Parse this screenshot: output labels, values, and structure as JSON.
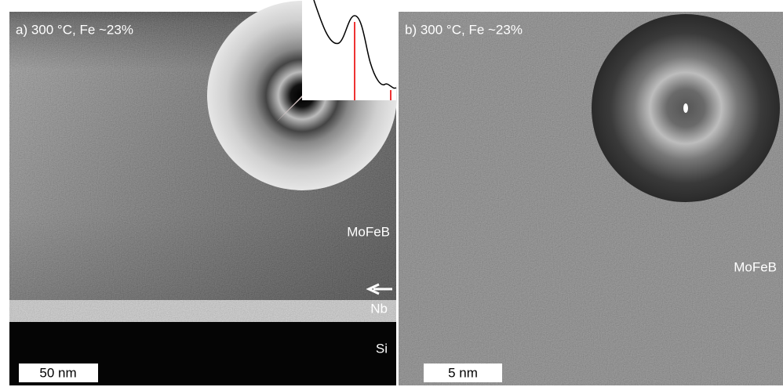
{
  "panels": [
    {
      "label": "a) 300 °C, Fe ~23%",
      "layers": [
        "MoFeB",
        "Nb",
        "Si"
      ],
      "scale_bar": "50 nm"
    },
    {
      "label": "b) 300 °C, Fe ~23%",
      "layers": [
        "MoFeB"
      ],
      "scale_bar": "5 nm"
    }
  ]
}
